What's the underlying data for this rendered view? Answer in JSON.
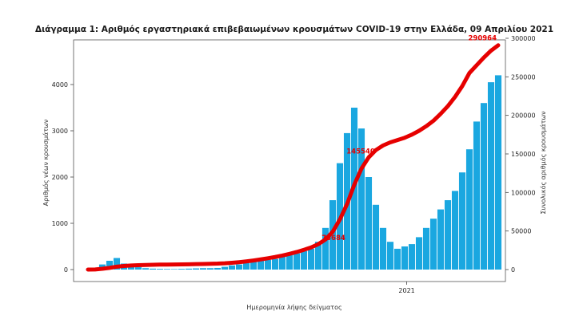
{
  "chart_data": {
    "type": "bar",
    "title": "Διάγραμμα 1: Αριθμός εργαστηριακά επιβεβαιωμένων κρουσμάτων COVID-19 στην Ελλάδα, 09 Απριλίου 2021",
    "xlabel": "Ημερομηνία λήψης δείγματος",
    "ylabel_left": "Αριθμός νέων κρουσμάτων",
    "ylabel_right": "Συνολικός αριθμός κρουσμάτων",
    "x_tick_labels": [
      "2021"
    ],
    "ylim_left": [
      0,
      5000
    ],
    "ylim_right": [
      0,
      300000
    ],
    "yticks_left": [
      0,
      1000,
      2000,
      3000,
      4000
    ],
    "yticks_right": [
      0,
      50000,
      100000,
      150000,
      200000,
      250000,
      300000
    ],
    "annotations": [
      "73684",
      "145540",
      "290964"
    ],
    "colors": {
      "bars": "#1aa7e0",
      "cumulative_line": "#e60000",
      "annotation": "#e60000"
    },
    "series": [
      {
        "type": "bar",
        "axis": "left",
        "x_start": "2020-02-26",
        "period_days": 7,
        "values": [
          1,
          20,
          110,
          190,
          250,
          130,
          80,
          50,
          30,
          20,
          15,
          12,
          10,
          15,
          20,
          25,
          30,
          30,
          35,
          60,
          90,
          110,
          150,
          180,
          200,
          210,
          230,
          280,
          320,
          350,
          400,
          450,
          600,
          900,
          1500,
          2300,
          2950,
          3500,
          3050,
          2000,
          1400,
          900,
          600,
          450,
          500,
          550,
          700,
          900,
          1100,
          1300,
          1500,
          1700,
          2100,
          2600,
          3200,
          3600,
          4050,
          4200
        ]
      },
      {
        "type": "line",
        "axis": "right",
        "x_start": "2020-02-26",
        "period_days": 7,
        "values": [
          1,
          150,
          1000,
          2200,
          3800,
          4700,
          5300,
          5700,
          6000,
          6200,
          6400,
          6500,
          6600,
          6700,
          6900,
          7100,
          7300,
          7500,
          7700,
          8100,
          8800,
          9600,
          10600,
          11800,
          13200,
          14700,
          16300,
          18200,
          20400,
          22800,
          25600,
          28700,
          33000,
          39000,
          49000,
          65000,
          85000,
          110000,
          131000,
          145540,
          155000,
          161000,
          165000,
          168000,
          171000,
          175000,
          180000,
          186000,
          193000,
          202000,
          212000,
          224000,
          238000,
          255000,
          265000,
          275000,
          284000,
          290964
        ]
      }
    ]
  }
}
